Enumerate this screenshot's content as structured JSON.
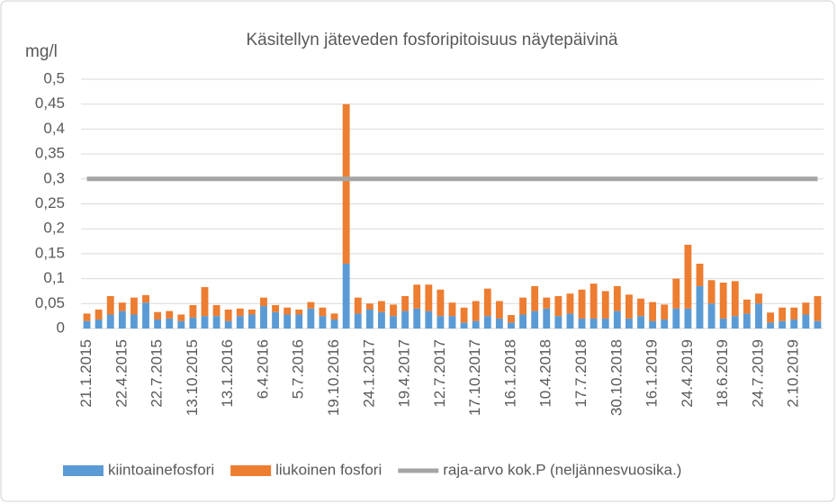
{
  "chart_data": {
    "type": "bar",
    "stacked": true,
    "title": "Käsitellyn jäteveden fosforipitoisuus näytepäivinä",
    "y_label": "mg/l",
    "categories": [
      "21.1.2015",
      null,
      null,
      "22.4.2015",
      null,
      null,
      "22.7.2015",
      null,
      null,
      "13.10.2015",
      null,
      null,
      "13.1.2016",
      null,
      null,
      "6.4.2016",
      null,
      null,
      "5.7.2016",
      null,
      null,
      "19.10.2016",
      null,
      null,
      "24.1.2017",
      null,
      null,
      "19.4.2017",
      null,
      null,
      "12.7.2017",
      null,
      null,
      "17.10.2017",
      null,
      null,
      "16.1.2018",
      null,
      null,
      "10.4.2018",
      null,
      null,
      "17.7.2018",
      null,
      null,
      "30.10.2018",
      null,
      null,
      "16.1.2019",
      null,
      null,
      "24.4.2019",
      null,
      null,
      "18.6.2019",
      null,
      null,
      "24.7.2019",
      null,
      null,
      "2.10.2019",
      null,
      null
    ],
    "series": [
      {
        "name": "kiintoainefosfori",
        "color": "#5b9bd5",
        "type": "bar",
        "values": [
          0.015,
          0.018,
          0.028,
          0.035,
          0.028,
          0.052,
          0.018,
          0.02,
          0.015,
          0.022,
          0.025,
          0.025,
          0.015,
          0.025,
          0.028,
          0.045,
          0.033,
          0.028,
          0.028,
          0.04,
          0.025,
          0.018,
          0.13,
          0.03,
          0.038,
          0.033,
          0.025,
          0.035,
          0.04,
          0.035,
          0.025,
          0.025,
          0.012,
          0.015,
          0.025,
          0.02,
          0.012,
          0.028,
          0.035,
          0.04,
          0.025,
          0.03,
          0.02,
          0.02,
          0.02,
          0.035,
          0.02,
          0.025,
          0.015,
          0.018,
          0.04,
          0.04,
          0.085,
          0.05,
          0.02,
          0.025,
          0.03,
          0.05,
          0.012,
          0.015,
          0.018,
          0.028,
          0.015
        ]
      },
      {
        "name": "liukoinen fosfori",
        "color": "#ed7d31",
        "type": "bar",
        "values": [
          0.015,
          0.02,
          0.037,
          0.017,
          0.034,
          0.015,
          0.015,
          0.015,
          0.013,
          0.025,
          0.058,
          0.022,
          0.023,
          0.015,
          0.01,
          0.017,
          0.014,
          0.014,
          0.01,
          0.013,
          0.017,
          0.012,
          0.32,
          0.032,
          0.012,
          0.022,
          0.023,
          0.03,
          0.048,
          0.053,
          0.053,
          0.027,
          0.03,
          0.04,
          0.055,
          0.035,
          0.015,
          0.034,
          0.05,
          0.022,
          0.04,
          0.04,
          0.058,
          0.07,
          0.055,
          0.05,
          0.048,
          0.035,
          0.038,
          0.03,
          0.06,
          0.128,
          0.045,
          0.047,
          0.072,
          0.07,
          0.028,
          0.02,
          0.02,
          0.027,
          0.024,
          0.024,
          0.05
        ]
      },
      {
        "name": "raja-arvo kok.P (neljännesvuosika.)",
        "color": "#a5a5a5",
        "type": "line",
        "values": [
          0.3,
          0.3,
          0.3,
          0.3,
          0.3,
          0.3,
          0.3,
          0.3,
          0.3,
          0.3,
          0.3,
          0.3,
          0.3,
          0.3,
          0.3,
          0.3,
          0.3,
          0.3,
          0.3,
          0.3,
          0.3,
          0.3,
          0.3,
          0.3,
          0.3,
          0.3,
          0.3,
          0.3,
          0.3,
          0.3,
          0.3,
          0.3,
          0.3,
          0.3,
          0.3,
          0.3,
          0.3,
          0.3,
          0.3,
          0.3,
          0.3,
          0.3,
          0.3,
          0.3,
          0.3,
          0.3,
          0.3,
          0.3,
          0.3,
          0.3,
          0.3,
          0.3,
          0.3,
          0.3,
          0.3,
          0.3,
          0.3,
          0.3,
          0.3,
          0.3,
          0.3,
          0.3,
          0.3
        ]
      }
    ],
    "ylim": [
      0,
      0.5
    ],
    "yticks": [
      0,
      {
        "value": 0.05,
        "label": "0,05"
      },
      {
        "value": 0.1,
        "label": "0,1"
      },
      {
        "value": 0.15,
        "label": "0,15"
      },
      {
        "value": 0.2,
        "label": "0,2"
      },
      {
        "value": 0.25,
        "label": "0,25"
      },
      {
        "value": 0.3,
        "label": "0,3"
      },
      {
        "value": 0.35,
        "label": "0,35"
      },
      {
        "value": 0.4,
        "label": "0,4"
      },
      {
        "value": 0.45,
        "label": "0,45"
      },
      {
        "value": 0.5,
        "label": "0,5"
      }
    ],
    "grid": true,
    "legend": "bottom"
  }
}
